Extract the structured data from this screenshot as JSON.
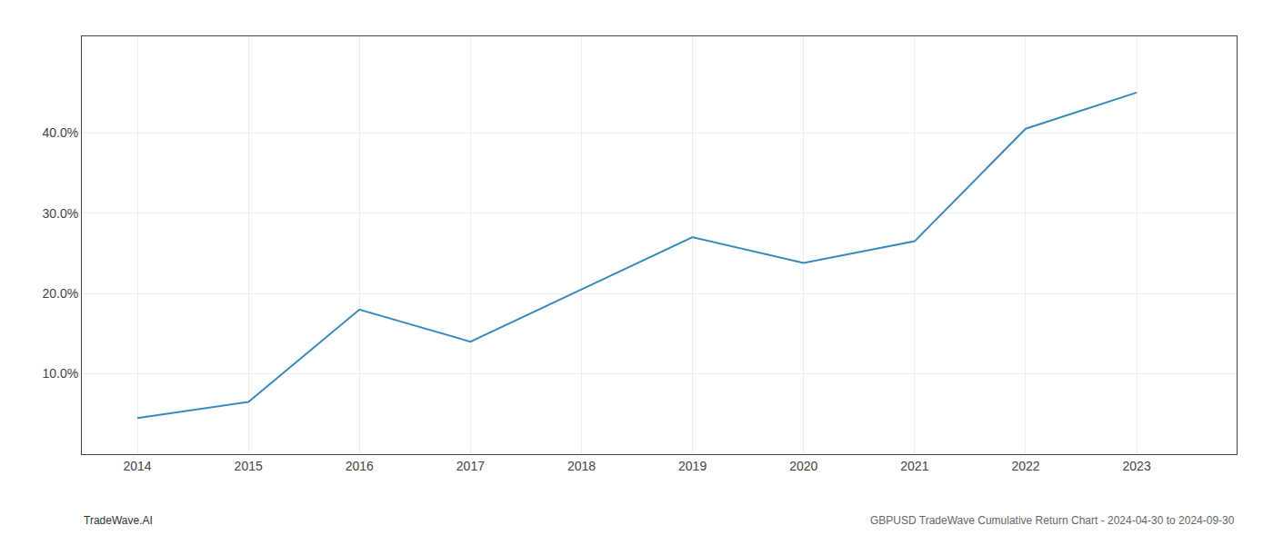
{
  "chart_data": {
    "type": "line",
    "x": [
      2014,
      2015,
      2016,
      2017,
      2018,
      2019,
      2020,
      2021,
      2022,
      2023
    ],
    "values": [
      4.5,
      6.5,
      18.0,
      14.0,
      20.5,
      27.0,
      23.8,
      26.5,
      40.5,
      45.0
    ],
    "color": "#3a8abf",
    "xlim": [
      2013.5,
      2023.9
    ],
    "xticks": [
      2014,
      2015,
      2016,
      2017,
      2018,
      2019,
      2020,
      2021,
      2022,
      2023
    ],
    "ylim": [
      0,
      52
    ],
    "yticks": [
      {
        "value": 10.0,
        "label": "10.0%"
      },
      {
        "value": 20.0,
        "label": "20.0%"
      },
      {
        "value": 30.0,
        "label": "30.0%"
      },
      {
        "value": 40.0,
        "label": "40.0%"
      }
    ],
    "grid": true,
    "annotations": [
      "TradeWave.AI",
      "GBPUSD TradeWave Cumulative Return Chart - 2024-04-30 to 2024-09-30"
    ]
  }
}
